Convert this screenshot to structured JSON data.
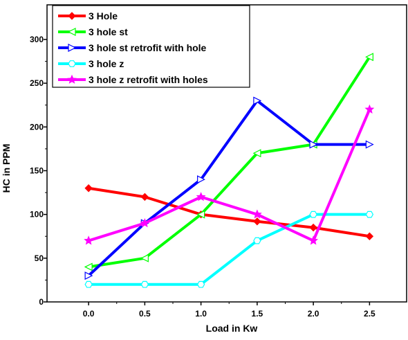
{
  "chart_data": {
    "type": "line",
    "title": "",
    "xlabel": "Load in Kw",
    "ylabel": "HC in PPM",
    "x": [
      0.0,
      0.5,
      1.0,
      1.5,
      2.0,
      2.5
    ],
    "x_ticks": [
      "0.0",
      "0.5",
      "1.0",
      "1.5",
      "2.0",
      "2.5"
    ],
    "xlim": [
      -0.37,
      2.83
    ],
    "y_ticks": [
      "0",
      "50",
      "100",
      "150",
      "200",
      "250",
      "300"
    ],
    "ylim": [
      0,
      300
    ],
    "grid": false,
    "legend_position": "top-left",
    "series": [
      {
        "name": "3 Hole",
        "color": "#ff0000",
        "marker": "diamond",
        "values": [
          130,
          120,
          100,
          92,
          85,
          75
        ]
      },
      {
        "name": "3 hole st",
        "color": "#00ff00",
        "marker": "triangle-left",
        "values": [
          40,
          50,
          100,
          170,
          180,
          280
        ]
      },
      {
        "name": "3 hole st retrofit with hole",
        "color": "#0000ff",
        "marker": "triangle-right",
        "values": [
          30,
          90,
          140,
          230,
          180,
          180
        ]
      },
      {
        "name": "3 hole z",
        "color": "#00ffff",
        "marker": "hexagon",
        "values": [
          20,
          20,
          20,
          70,
          100,
          100
        ]
      },
      {
        "name": "3 hole z retrofit with holes",
        "color": "#ff00ff",
        "marker": "star",
        "values": [
          70,
          90,
          120,
          100,
          70,
          220
        ]
      }
    ]
  }
}
